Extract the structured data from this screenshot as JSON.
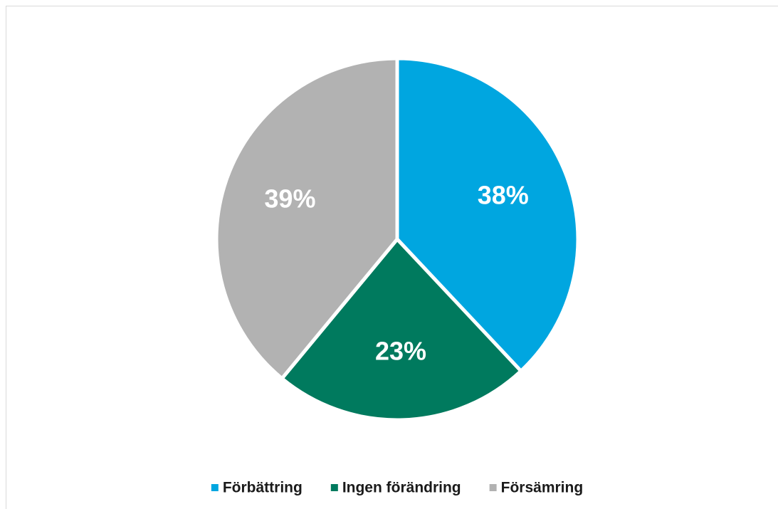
{
  "chart_data": {
    "type": "pie",
    "categories": [
      "Förbättring",
      "Ingen förändring",
      "Försämring"
    ],
    "values": [
      38,
      23,
      39
    ],
    "value_labels": [
      "38%",
      "23%",
      "39%"
    ],
    "colors": [
      "#00a6e0",
      "#007a5e",
      "#b2b2b2"
    ],
    "legend": "bottom"
  }
}
